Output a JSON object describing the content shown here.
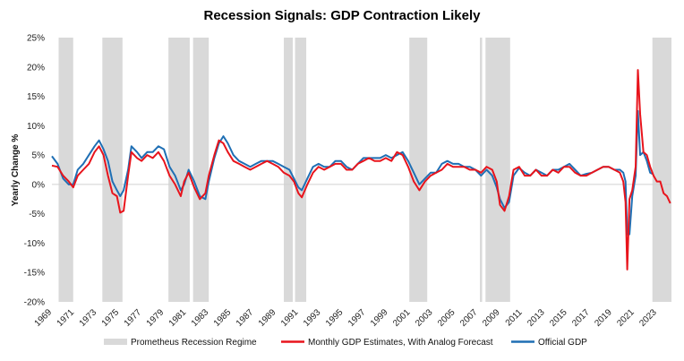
{
  "chart_data": {
    "type": "line",
    "title": "Recession Signals: GDP Contraction Likely",
    "ylabel": "Yearly Change %",
    "xlabel": "",
    "xlim": [
      1969,
      2024.3
    ],
    "ylim": [
      -20,
      25
    ],
    "y_ticks": [
      25,
      20,
      15,
      10,
      5,
      0,
      -5,
      -10,
      -15,
      -20
    ],
    "y_tick_labels": [
      "25%",
      "20%",
      "15%",
      "10%",
      "5%",
      "0%",
      "-5%",
      "-10%",
      "-15%",
      "-20%"
    ],
    "x_ticks": [
      1969,
      1971,
      1973,
      1975,
      1977,
      1979,
      1981,
      1983,
      1985,
      1987,
      1989,
      1991,
      1993,
      1995,
      1997,
      1999,
      2001,
      2003,
      2005,
      2007,
      2009,
      2011,
      2013,
      2015,
      2017,
      2019,
      2021,
      2023
    ],
    "x_tick_labels": [
      "1969",
      "1971",
      "1973",
      "1975",
      "1977",
      "1979",
      "1981",
      "1983",
      "1985",
      "1987",
      "1989",
      "1991",
      "1993",
      "1995",
      "1997",
      "1999",
      "2001",
      "2003",
      "2005",
      "2007",
      "2009",
      "2011",
      "2013",
      "2015",
      "2017",
      "2019",
      "2021",
      "2023"
    ],
    "grid": false,
    "legend_position": "bottom",
    "recession_periods": [
      [
        1969.6,
        1970.9
      ],
      [
        1973.5,
        1975.3
      ],
      [
        1979.4,
        1981.3
      ],
      [
        1981.6,
        1983.0
      ],
      [
        1989.7,
        1990.5
      ],
      [
        1990.7,
        1991.7
      ],
      [
        2000.9,
        2002.5
      ],
      [
        2007.2,
        2007.4
      ],
      [
        2007.7,
        2009.9
      ],
      [
        2022.6,
        2024.3
      ]
    ],
    "series": [
      {
        "name": "Prometheus Recession Regime",
        "kind": "area",
        "color": "#d9d9d9"
      },
      {
        "name": "Monthly GDP Estimates, With Analog Forecast",
        "kind": "line",
        "color": "#e8141c",
        "points": [
          [
            1969.0,
            3.2
          ],
          [
            1969.5,
            3.0
          ],
          [
            1970.0,
            1.5
          ],
          [
            1970.5,
            0.5
          ],
          [
            1970.9,
            -0.5
          ],
          [
            1971.3,
            1.5
          ],
          [
            1971.8,
            2.5
          ],
          [
            1972.3,
            3.5
          ],
          [
            1972.8,
            5.5
          ],
          [
            1973.2,
            6.5
          ],
          [
            1973.6,
            5.0
          ],
          [
            1974.0,
            1.5
          ],
          [
            1974.4,
            -1.5
          ],
          [
            1974.8,
            -2.0
          ],
          [
            1975.1,
            -4.8
          ],
          [
            1975.4,
            -4.5
          ],
          [
            1975.8,
            1.5
          ],
          [
            1976.1,
            5.5
          ],
          [
            1976.6,
            4.5
          ],
          [
            1977.0,
            4.0
          ],
          [
            1977.5,
            5.0
          ],
          [
            1978.0,
            4.5
          ],
          [
            1978.5,
            5.5
          ],
          [
            1979.0,
            4.0
          ],
          [
            1979.5,
            1.5
          ],
          [
            1980.0,
            0.0
          ],
          [
            1980.5,
            -2.0
          ],
          [
            1980.8,
            0.5
          ],
          [
            1981.2,
            2.0
          ],
          [
            1981.7,
            -0.5
          ],
          [
            1982.2,
            -2.5
          ],
          [
            1982.7,
            -1.5
          ],
          [
            1983.0,
            1.5
          ],
          [
            1983.5,
            5.0
          ],
          [
            1983.9,
            7.5
          ],
          [
            1984.3,
            7.0
          ],
          [
            1984.7,
            5.5
          ],
          [
            1985.2,
            4.0
          ],
          [
            1985.7,
            3.5
          ],
          [
            1986.2,
            3.0
          ],
          [
            1986.7,
            2.5
          ],
          [
            1987.2,
            3.0
          ],
          [
            1987.7,
            3.5
          ],
          [
            1988.2,
            4.0
          ],
          [
            1988.7,
            3.5
          ],
          [
            1989.2,
            3.0
          ],
          [
            1989.7,
            2.0
          ],
          [
            1990.2,
            1.5
          ],
          [
            1990.6,
            0.5
          ],
          [
            1991.0,
            -1.5
          ],
          [
            1991.3,
            -2.2
          ],
          [
            1991.8,
            0.0
          ],
          [
            1992.3,
            2.0
          ],
          [
            1992.8,
            3.0
          ],
          [
            1993.3,
            2.5
          ],
          [
            1993.8,
            3.0
          ],
          [
            1994.3,
            3.5
          ],
          [
            1994.8,
            3.5
          ],
          [
            1995.3,
            2.5
          ],
          [
            1995.8,
            2.5
          ],
          [
            1996.3,
            3.5
          ],
          [
            1996.8,
            4.0
          ],
          [
            1997.3,
            4.5
          ],
          [
            1997.8,
            4.0
          ],
          [
            1998.3,
            4.0
          ],
          [
            1998.8,
            4.5
          ],
          [
            1999.3,
            4.0
          ],
          [
            1999.8,
            5.5
          ],
          [
            2000.3,
            5.0
          ],
          [
            2000.8,
            3.0
          ],
          [
            2001.3,
            0.5
          ],
          [
            2001.8,
            -1.0
          ],
          [
            2002.3,
            0.5
          ],
          [
            2002.8,
            1.5
          ],
          [
            2003.3,
            2.0
          ],
          [
            2003.8,
            2.5
          ],
          [
            2004.3,
            3.5
          ],
          [
            2004.8,
            3.0
          ],
          [
            2005.3,
            3.0
          ],
          [
            2005.8,
            3.0
          ],
          [
            2006.3,
            2.5
          ],
          [
            2006.8,
            2.5
          ],
          [
            2007.3,
            2.0
          ],
          [
            2007.8,
            3.0
          ],
          [
            2008.3,
            2.5
          ],
          [
            2008.7,
            0.5
          ],
          [
            2009.0,
            -3.5
          ],
          [
            2009.4,
            -4.5
          ],
          [
            2009.8,
            -2.0
          ],
          [
            2010.2,
            2.5
          ],
          [
            2010.7,
            3.0
          ],
          [
            2011.2,
            1.5
          ],
          [
            2011.7,
            1.5
          ],
          [
            2012.2,
            2.5
          ],
          [
            2012.7,
            1.5
          ],
          [
            2013.2,
            1.5
          ],
          [
            2013.7,
            2.5
          ],
          [
            2014.2,
            2.0
          ],
          [
            2014.7,
            3.0
          ],
          [
            2015.2,
            3.0
          ],
          [
            2015.7,
            2.0
          ],
          [
            2016.2,
            1.5
          ],
          [
            2016.7,
            1.5
          ],
          [
            2017.2,
            2.0
          ],
          [
            2017.7,
            2.5
          ],
          [
            2018.2,
            3.0
          ],
          [
            2018.7,
            3.0
          ],
          [
            2019.2,
            2.5
          ],
          [
            2019.7,
            2.0
          ],
          [
            2020.0,
            0.5
          ],
          [
            2020.2,
            -3.0
          ],
          [
            2020.35,
            -14.5
          ],
          [
            2020.55,
            -2.5
          ],
          [
            2020.8,
            -1.0
          ],
          [
            2021.1,
            3.0
          ],
          [
            2021.3,
            19.5
          ],
          [
            2021.5,
            12.0
          ],
          [
            2021.8,
            5.5
          ],
          [
            2022.1,
            5.0
          ],
          [
            2022.4,
            3.0
          ],
          [
            2022.7,
            1.5
          ],
          [
            2023.0,
            0.5
          ],
          [
            2023.3,
            0.5
          ],
          [
            2023.6,
            -1.5
          ],
          [
            2023.9,
            -2.0
          ],
          [
            2024.2,
            -3.2
          ]
        ]
      },
      {
        "name": "Official GDP",
        "kind": "line",
        "color": "#1f6fb4",
        "points": [
          [
            1969.0,
            4.8
          ],
          [
            1969.5,
            3.5
          ],
          [
            1970.0,
            1.0
          ],
          [
            1970.5,
            0.0
          ],
          [
            1970.9,
            0.0
          ],
          [
            1971.3,
            2.5
          ],
          [
            1971.8,
            3.5
          ],
          [
            1972.3,
            5.0
          ],
          [
            1972.8,
            6.5
          ],
          [
            1973.2,
            7.5
          ],
          [
            1973.6,
            6.0
          ],
          [
            1974.0,
            4.0
          ],
          [
            1974.4,
            0.5
          ],
          [
            1974.8,
            -1.0
          ],
          [
            1975.1,
            -2.0
          ],
          [
            1975.4,
            -1.0
          ],
          [
            1975.8,
            2.5
          ],
          [
            1976.1,
            6.5
          ],
          [
            1976.6,
            5.5
          ],
          [
            1977.0,
            4.5
          ],
          [
            1977.5,
            5.5
          ],
          [
            1978.0,
            5.5
          ],
          [
            1978.5,
            6.5
          ],
          [
            1979.0,
            6.0
          ],
          [
            1979.5,
            3.0
          ],
          [
            1980.0,
            1.5
          ],
          [
            1980.5,
            -1.0
          ],
          [
            1980.8,
            0.0
          ],
          [
            1981.2,
            2.5
          ],
          [
            1981.7,
            0.5
          ],
          [
            1982.2,
            -2.0
          ],
          [
            1982.7,
            -2.5
          ],
          [
            1983.0,
            0.5
          ],
          [
            1983.5,
            4.5
          ],
          [
            1983.9,
            7.0
          ],
          [
            1984.3,
            8.2
          ],
          [
            1984.7,
            7.0
          ],
          [
            1985.2,
            5.0
          ],
          [
            1985.7,
            4.0
          ],
          [
            1986.2,
            3.5
          ],
          [
            1986.7,
            3.0
          ],
          [
            1987.2,
            3.5
          ],
          [
            1987.7,
            4.0
          ],
          [
            1988.2,
            4.0
          ],
          [
            1988.7,
            4.0
          ],
          [
            1989.2,
            3.5
          ],
          [
            1989.7,
            3.0
          ],
          [
            1990.2,
            2.5
          ],
          [
            1990.6,
            1.0
          ],
          [
            1991.0,
            -0.5
          ],
          [
            1991.3,
            -1.0
          ],
          [
            1991.8,
            1.0
          ],
          [
            1992.3,
            3.0
          ],
          [
            1992.8,
            3.5
          ],
          [
            1993.3,
            3.0
          ],
          [
            1993.8,
            3.0
          ],
          [
            1994.3,
            4.0
          ],
          [
            1994.8,
            4.0
          ],
          [
            1995.3,
            3.0
          ],
          [
            1995.8,
            2.5
          ],
          [
            1996.3,
            3.5
          ],
          [
            1996.8,
            4.5
          ],
          [
            1997.3,
            4.5
          ],
          [
            1997.8,
            4.5
          ],
          [
            1998.3,
            4.5
          ],
          [
            1998.8,
            5.0
          ],
          [
            1999.3,
            4.5
          ],
          [
            1999.8,
            5.0
          ],
          [
            2000.3,
            5.5
          ],
          [
            2000.8,
            4.0
          ],
          [
            2001.3,
            2.0
          ],
          [
            2001.8,
            0.0
          ],
          [
            2002.3,
            1.0
          ],
          [
            2002.8,
            2.0
          ],
          [
            2003.3,
            2.0
          ],
          [
            2003.8,
            3.5
          ],
          [
            2004.3,
            4.0
          ],
          [
            2004.8,
            3.5
          ],
          [
            2005.3,
            3.5
          ],
          [
            2005.8,
            3.0
          ],
          [
            2006.3,
            3.0
          ],
          [
            2006.8,
            2.5
          ],
          [
            2007.3,
            1.5
          ],
          [
            2007.8,
            2.5
          ],
          [
            2008.3,
            1.5
          ],
          [
            2008.7,
            -0.5
          ],
          [
            2009.0,
            -2.5
          ],
          [
            2009.4,
            -4.0
          ],
          [
            2009.8,
            -3.0
          ],
          [
            2010.2,
            1.5
          ],
          [
            2010.7,
            2.8
          ],
          [
            2011.2,
            2.0
          ],
          [
            2011.7,
            1.5
          ],
          [
            2012.2,
            2.5
          ],
          [
            2012.7,
            2.0
          ],
          [
            2013.2,
            1.5
          ],
          [
            2013.7,
            2.5
          ],
          [
            2014.2,
            2.5
          ],
          [
            2014.7,
            3.0
          ],
          [
            2015.2,
            3.5
          ],
          [
            2015.7,
            2.5
          ],
          [
            2016.2,
            1.5
          ],
          [
            2016.7,
            1.8
          ],
          [
            2017.2,
            2.0
          ],
          [
            2017.7,
            2.5
          ],
          [
            2018.2,
            3.0
          ],
          [
            2018.7,
            3.0
          ],
          [
            2019.2,
            2.5
          ],
          [
            2019.7,
            2.5
          ],
          [
            2020.0,
            2.0
          ],
          [
            2020.2,
            0.5
          ],
          [
            2020.35,
            -8.5
          ],
          [
            2020.55,
            -8.5
          ],
          [
            2020.8,
            -2.0
          ],
          [
            2021.1,
            1.5
          ],
          [
            2021.3,
            12.5
          ],
          [
            2021.5,
            5.0
          ],
          [
            2021.8,
            5.5
          ],
          [
            2022.1,
            4.0
          ],
          [
            2022.4,
            2.0
          ],
          [
            2022.6,
            1.8
          ]
        ]
      }
    ]
  }
}
